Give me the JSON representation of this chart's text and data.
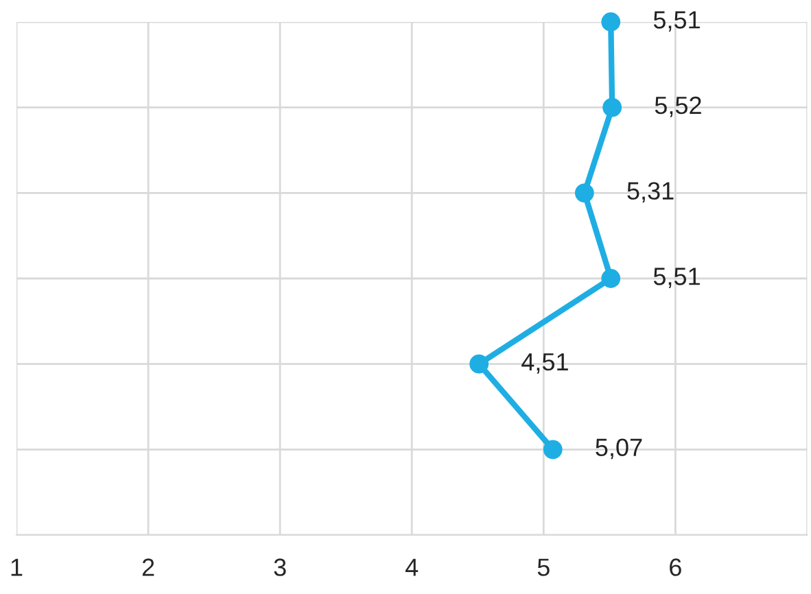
{
  "chart_data": {
    "type": "line",
    "orientation": "horizontal",
    "categories": [
      null,
      null,
      null,
      null,
      null,
      null
    ],
    "series": [
      {
        "color": "#1faee3",
        "values": [
          5.51,
          5.52,
          5.31,
          5.51,
          4.51,
          5.07
        ],
        "value_labels": [
          "5,51",
          "5,52",
          "5,31",
          "5,51",
          "4,51",
          "5,07"
        ]
      }
    ],
    "xlim": [
      1,
      7
    ],
    "xticks": [
      1,
      2,
      3,
      4,
      5,
      6,
      {
        "value": 7,
        "label": null
      }
    ],
    "grid": true,
    "marker": "circle",
    "line_style": "solid",
    "legend": false
  }
}
